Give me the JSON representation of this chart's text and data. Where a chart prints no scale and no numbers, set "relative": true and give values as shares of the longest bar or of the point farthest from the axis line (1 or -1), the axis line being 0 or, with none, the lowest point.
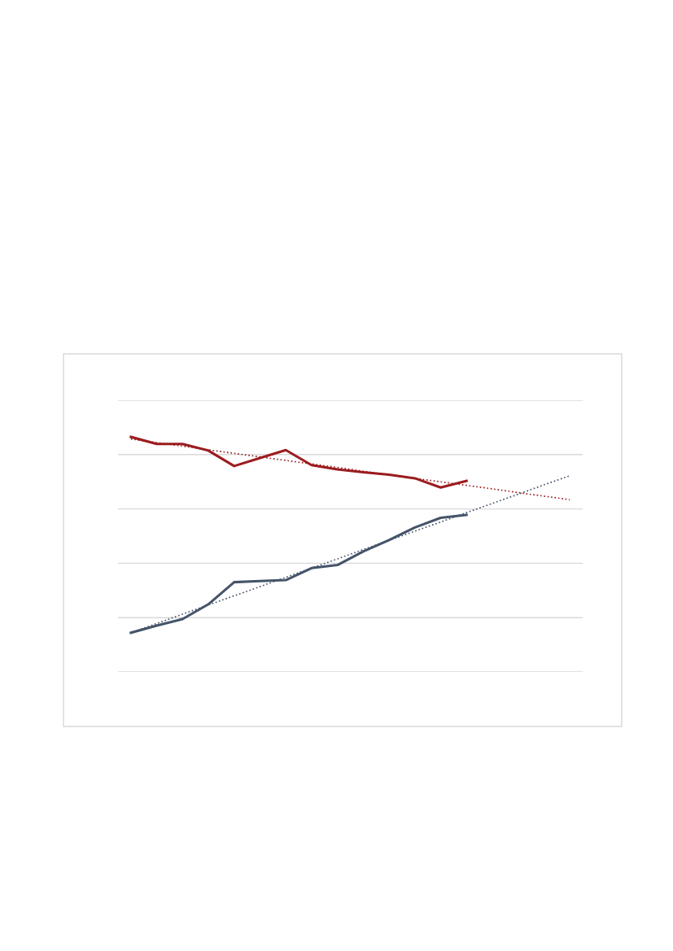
{
  "chart_data": {
    "type": "line",
    "relative": true,
    "grid": "y",
    "line_style": "solid",
    "marker": "none",
    "categories": [
      null,
      null,
      null,
      null,
      null,
      null,
      null,
      null,
      null,
      null,
      null,
      null,
      null,
      null,
      null,
      null,
      null,
      null
    ],
    "series": [
      {
        "color": "#9b1c1f",
        "values": [
          1.0,
          0.97,
          0.97,
          0.942,
          0.876,
          0.91,
          0.944,
          0.88,
          0.862,
          0.85,
          0.839,
          0.824,
          0.785,
          0.813,
          null,
          null,
          null,
          null
        ]
      },
      {
        "color": "#44546a",
        "values": [
          0.167,
          0.197,
          0.225,
          0.288,
          0.382,
          0.387,
          0.391,
          0.442,
          0.455,
          0.513,
          0.561,
          0.615,
          0.656,
          0.668,
          null,
          null,
          null,
          null
        ]
      },
      {
        "color": "#9b1c1f",
        "line_style": "dotted",
        "values": [
          0.991,
          0.976,
          0.961,
          0.945,
          0.93,
          0.915,
          0.9,
          0.885,
          0.87,
          0.854,
          0.839,
          0.824,
          0.809,
          0.794,
          0.779,
          0.763,
          0.748,
          0.733
        ]
      },
      {
        "color": "#44546a",
        "line_style": "dotted",
        "values": [
          0.167,
          0.206,
          0.246,
          0.285,
          0.324,
          0.363,
          0.403,
          0.442,
          0.481,
          0.521,
          0.56,
          0.599,
          0.638,
          0.678,
          0.717,
          0.756,
          0.796,
          0.835
        ]
      }
    ]
  }
}
